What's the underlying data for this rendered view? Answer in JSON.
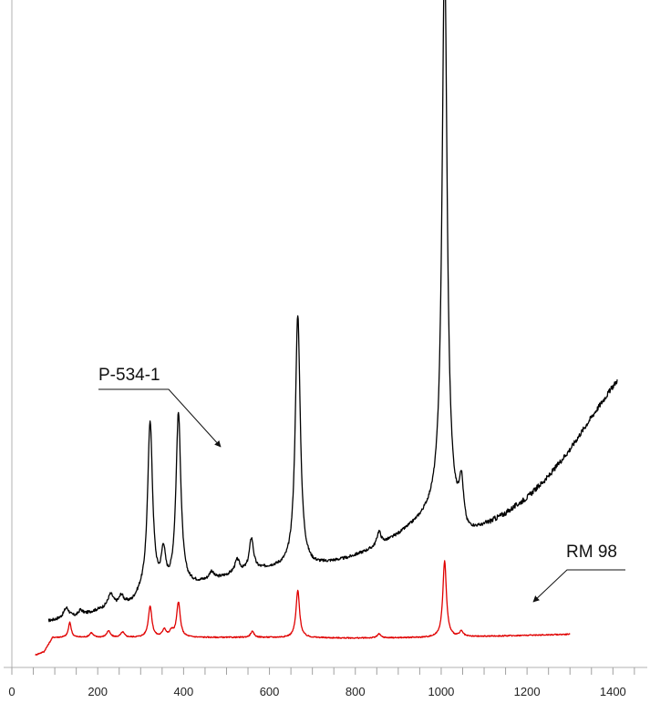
{
  "chart_data": {
    "type": "line",
    "title": "",
    "xlabel": "",
    "ylabel": "",
    "xlim": [
      0,
      1480
    ],
    "ylim": [
      0,
      100
    ],
    "x_ticks_labeled": [
      0,
      200,
      400,
      600,
      800,
      1000,
      1200,
      1400
    ],
    "x_tick_labels": [
      "0",
      "200",
      "400",
      "600",
      "800",
      "1000",
      "1200",
      "1400"
    ],
    "x_minor_tick_step": 50,
    "y_axis_ticks": false,
    "grid": false,
    "legend": "none",
    "annotations": [
      {
        "text": "P-534-1",
        "points_to": "P-534-1"
      },
      {
        "text": "RM 98",
        "points_to": "RM 98"
      }
    ],
    "series": [
      {
        "name": "P-534-1",
        "color": "#000000",
        "baseline": [
          [
            85,
            6.0
          ],
          [
            150,
            6.6
          ],
          [
            200,
            7.6
          ],
          [
            280,
            8.6
          ],
          [
            300,
            9.8
          ],
          [
            380,
            10.6
          ],
          [
            440,
            11.8
          ],
          [
            520,
            13.2
          ],
          [
            600,
            14.1
          ],
          [
            700,
            14.4
          ],
          [
            780,
            15.6
          ],
          [
            850,
            17.3
          ],
          [
            900,
            19.2
          ],
          [
            950,
            21.4
          ],
          [
            1000,
            24.0
          ],
          [
            1060,
            19.2
          ],
          [
            1100,
            20.5
          ],
          [
            1150,
            22.5
          ],
          [
            1200,
            25.0
          ],
          [
            1250,
            28.3
          ],
          [
            1300,
            32.5
          ],
          [
            1350,
            37.5
          ],
          [
            1410,
            43.2
          ]
        ],
        "peaks": [
          [
            127,
            1.6,
            8
          ],
          [
            160,
            0.8,
            6
          ],
          [
            230,
            2.0,
            8
          ],
          [
            255,
            1.4,
            6
          ],
          [
            322,
            26.5,
            7
          ],
          [
            353,
            5.5,
            6
          ],
          [
            388,
            27.0,
            7
          ],
          [
            465,
            1.2,
            6
          ],
          [
            525,
            2.0,
            7
          ],
          [
            558,
            5.0,
            6
          ],
          [
            666,
            39.0,
            7
          ],
          [
            855,
            2.2,
            6
          ],
          [
            1008,
            86.0,
            7
          ],
          [
            1047,
            6.5,
            6
          ]
        ]
      },
      {
        "name": "RM 98",
        "color": "#e00000",
        "baseline": [
          [
            55,
            0.8
          ],
          [
            75,
            1.3
          ],
          [
            95,
            3.5
          ],
          [
            200,
            3.5
          ],
          [
            400,
            3.5
          ],
          [
            600,
            3.5
          ],
          [
            800,
            3.4
          ],
          [
            1000,
            3.5
          ],
          [
            1300,
            4.0
          ]
        ],
        "peaks": [
          [
            135,
            2.3,
            4
          ],
          [
            185,
            0.7,
            5
          ],
          [
            225,
            1.0,
            5
          ],
          [
            258,
            0.8,
            5
          ],
          [
            322,
            4.8,
            5
          ],
          [
            355,
            1.2,
            5
          ],
          [
            372,
            0.9,
            5
          ],
          [
            388,
            5.4,
            5
          ],
          [
            560,
            0.9,
            5
          ],
          [
            666,
            7.3,
            5
          ],
          [
            855,
            0.6,
            5
          ],
          [
            1008,
            11.8,
            5
          ],
          [
            1047,
            0.8,
            5
          ]
        ]
      }
    ]
  }
}
